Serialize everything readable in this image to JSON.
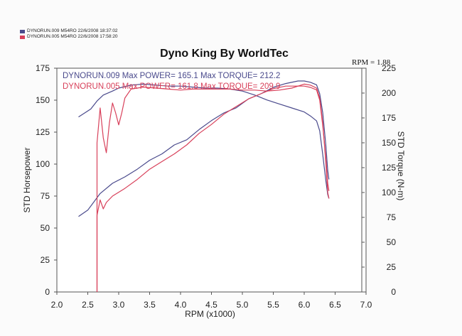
{
  "legend": [
    {
      "label": "DYNORUN.009   M54RO  22/6/2008 18:37:02",
      "color": "#4a4a8c"
    },
    {
      "label": "DYNORUN.005   M54RO  22/6/2008 17:58:20",
      "color": "#d8405a"
    }
  ],
  "rpm_note": "RPM = 1.88",
  "colors": {
    "run009": "#4a4a8c",
    "run005": "#d8405a"
  },
  "chart_data": {
    "type": "line",
    "title": "Dyno King By WorldTec",
    "xlabel": "RPM (x1000)",
    "ylabel_left": "STD Horsepower",
    "ylabel_right": "STD Torque (N-m)",
    "xlim": [
      2.0,
      7.0
    ],
    "ylim_left": [
      0,
      175
    ],
    "ylim_right": [
      0,
      225
    ],
    "x_ticks": [
      "2.0",
      "2.5",
      "3.0",
      "3.5",
      "4.0",
      "4.5",
      "5.0",
      "5.5",
      "6.0",
      "6.5",
      "7.0"
    ],
    "y_ticks_left": [
      "0",
      "25",
      "50",
      "75",
      "100",
      "125",
      "150",
      "175"
    ],
    "y_ticks_right": [
      "0",
      "25",
      "50",
      "75",
      "100",
      "125",
      "150",
      "175",
      "200",
      "225"
    ],
    "annotations": [
      {
        "text": "DYNORUN.009  Max POWER= 165.1 Max TORQUE= 212.2",
        "color": "#4a4a8c"
      },
      {
        "text": "DYNORUN.005  Max POWER= 161.8 Max TORQUE= 209.9",
        "color": "#d8405a"
      }
    ],
    "series": [
      {
        "name": "DYNORUN.009",
        "quantity": "power",
        "axis": "left",
        "color": "#4a4a8c",
        "x": [
          2.35,
          2.5,
          2.7,
          2.9,
          3.1,
          3.3,
          3.5,
          3.7,
          3.9,
          4.1,
          4.3,
          4.5,
          4.7,
          4.9,
          5.1,
          5.3,
          5.5,
          5.7,
          5.9,
          6.0,
          6.1,
          6.2,
          6.25,
          6.3,
          6.35,
          6.38,
          6.4
        ],
        "y": [
          59,
          64,
          77,
          85,
          90,
          96,
          103,
          108,
          115,
          119,
          127,
          134,
          140,
          144,
          151,
          155,
          160,
          163,
          165,
          165,
          164,
          162,
          155,
          140,
          115,
          95,
          88
        ]
      },
      {
        "name": "DYNORUN.009",
        "quantity": "torque",
        "axis": "right",
        "color": "#4a4a8c",
        "x": [
          2.35,
          2.45,
          2.55,
          2.65,
          2.75,
          2.9,
          3.0,
          3.2,
          3.4,
          3.6,
          3.8,
          4.0,
          4.2,
          4.4,
          4.6,
          4.8,
          5.0,
          5.2,
          5.4,
          5.6,
          5.8,
          6.0,
          6.1,
          6.2,
          6.25,
          6.3,
          6.35,
          6.38,
          6.4
        ],
        "y": [
          176,
          180,
          184,
          192,
          198,
          202,
          205,
          208,
          209,
          208,
          207,
          207,
          206,
          205,
          205,
          204,
          202,
          198,
          193,
          189,
          185,
          181,
          177,
          172,
          162,
          138,
          112,
          98,
          94
        ]
      },
      {
        "name": "DYNORUN.005",
        "quantity": "power",
        "axis": "left",
        "color": "#d8405a",
        "x": [
          2.65,
          2.65,
          2.7,
          2.75,
          2.8,
          2.9,
          3.0,
          3.1,
          3.3,
          3.5,
          3.7,
          3.9,
          4.1,
          4.3,
          4.5,
          4.7,
          4.9,
          5.1,
          5.3,
          5.5,
          5.7,
          5.9,
          6.0,
          6.1,
          6.2,
          6.25,
          6.3,
          6.35,
          6.38,
          6.4
        ],
        "y": [
          0,
          60,
          72,
          65,
          70,
          75,
          78,
          81,
          88,
          96,
          102,
          108,
          115,
          124,
          131,
          139,
          145,
          151,
          155,
          159,
          161,
          161,
          161,
          160,
          158,
          150,
          130,
          105,
          85,
          79
        ]
      },
      {
        "name": "DYNORUN.005",
        "quantity": "torque",
        "axis": "right",
        "color": "#d8405a",
        "x": [
          2.65,
          2.65,
          2.7,
          2.75,
          2.8,
          2.85,
          2.9,
          2.95,
          3.0,
          3.05,
          3.1,
          3.2,
          3.4,
          3.6,
          3.8,
          4.0,
          4.2,
          4.4,
          4.6,
          4.8,
          5.0,
          5.2,
          5.4,
          5.6,
          5.8,
          6.0,
          6.1,
          6.2,
          6.25,
          6.3,
          6.35,
          6.38,
          6.4
        ],
        "y": [
          0,
          150,
          185,
          155,
          140,
          170,
          190,
          180,
          168,
          180,
          195,
          204,
          206,
          205,
          204,
          203,
          204,
          204,
          204,
          204,
          203,
          203,
          202,
          203,
          205,
          209,
          208,
          205,
          195,
          170,
          130,
          100,
          94
        ]
      }
    ]
  }
}
